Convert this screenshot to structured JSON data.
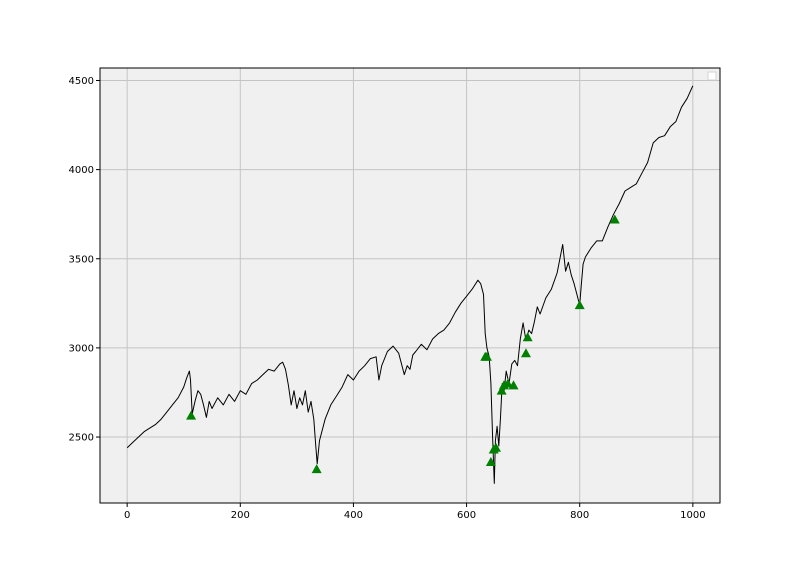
{
  "chart_data": {
    "type": "line",
    "title": "",
    "xlabel": "",
    "ylabel": "",
    "xlim": [
      -48,
      1048
    ],
    "ylim": [
      2130,
      4570
    ],
    "x_ticks": [
      0,
      200,
      400,
      600,
      800,
      1000
    ],
    "y_ticks": [
      2500,
      3000,
      3500,
      4000,
      4500
    ],
    "x_tick_labels": [
      "0",
      "200",
      "400",
      "600",
      "800",
      "1000"
    ],
    "y_tick_labels": [
      "2500",
      "3000",
      "3500",
      "4000",
      "4500"
    ],
    "grid": true,
    "legend": "top-right, empty",
    "colors": {
      "plot_background": "#f0f0f0",
      "line": "#000000",
      "marker": "#008000",
      "grid": "#c4c4c4"
    },
    "series": [
      {
        "type": "line",
        "x": [
          0,
          10,
          20,
          30,
          40,
          50,
          60,
          70,
          80,
          90,
          100,
          105,
          110,
          112,
          115,
          120,
          125,
          130,
          135,
          140,
          145,
          150,
          160,
          170,
          180,
          190,
          200,
          210,
          220,
          230,
          240,
          250,
          260,
          270,
          275,
          280,
          285,
          290,
          295,
          300,
          305,
          310,
          315,
          320,
          325,
          330,
          333,
          336,
          340,
          350,
          360,
          370,
          380,
          390,
          400,
          410,
          420,
          430,
          440,
          445,
          450,
          460,
          470,
          480,
          490,
          495,
          500,
          505,
          510,
          520,
          530,
          540,
          550,
          560,
          570,
          580,
          590,
          600,
          610,
          620,
          625,
          630,
          633,
          636,
          640,
          643,
          646,
          649,
          651,
          654,
          657,
          660,
          663,
          666,
          670,
          675,
          680,
          685,
          690,
          695,
          700,
          705,
          710,
          715,
          720,
          725,
          730,
          740,
          750,
          760,
          770,
          775,
          780,
          785,
          790,
          795,
          800,
          803,
          806,
          810,
          820,
          830,
          840,
          850,
          860,
          870,
          880,
          890,
          900,
          910,
          920,
          930,
          940,
          950,
          960,
          970,
          980,
          990,
          1000
        ],
        "y": [
          2440,
          2470,
          2500,
          2530,
          2550,
          2570,
          2600,
          2640,
          2680,
          2720,
          2780,
          2830,
          2870,
          2820,
          2630,
          2700,
          2760,
          2740,
          2680,
          2610,
          2700,
          2660,
          2720,
          2680,
          2740,
          2700,
          2760,
          2740,
          2800,
          2820,
          2850,
          2880,
          2870,
          2910,
          2920,
          2880,
          2790,
          2680,
          2760,
          2660,
          2720,
          2680,
          2760,
          2640,
          2700,
          2600,
          2470,
          2350,
          2480,
          2600,
          2680,
          2730,
          2780,
          2850,
          2820,
          2870,
          2900,
          2940,
          2950,
          2820,
          2900,
          2980,
          3010,
          2970,
          2850,
          2900,
          2880,
          2960,
          2980,
          3020,
          2990,
          3050,
          3080,
          3100,
          3140,
          3200,
          3250,
          3290,
          3330,
          3380,
          3360,
          3300,
          3080,
          3000,
          2950,
          2800,
          2500,
          2240,
          2480,
          2560,
          2450,
          2610,
          2800,
          2750,
          2870,
          2800,
          2910,
          2930,
          2900,
          3050,
          3140,
          3040,
          3100,
          3080,
          3150,
          3230,
          3190,
          3280,
          3330,
          3420,
          3580,
          3430,
          3480,
          3410,
          3360,
          3300,
          3240,
          3360,
          3470,
          3510,
          3560,
          3600,
          3600,
          3680,
          3750,
          3810,
          3880,
          3900,
          3920,
          3980,
          4040,
          4150,
          4180,
          4190,
          4240,
          4270,
          4350,
          4400,
          4470
        ]
      },
      {
        "type": "scatter",
        "marker": "triangle-up",
        "x": [
          113,
          335,
          633,
          636,
          643,
          648,
          652,
          662,
          666,
          673,
          683,
          705,
          708,
          800,
          862
        ],
        "y": [
          2620,
          2320,
          2950,
          2950,
          2360,
          2430,
          2440,
          2760,
          2790,
          2800,
          2790,
          2970,
          3060,
          3240,
          3720
        ]
      }
    ]
  }
}
